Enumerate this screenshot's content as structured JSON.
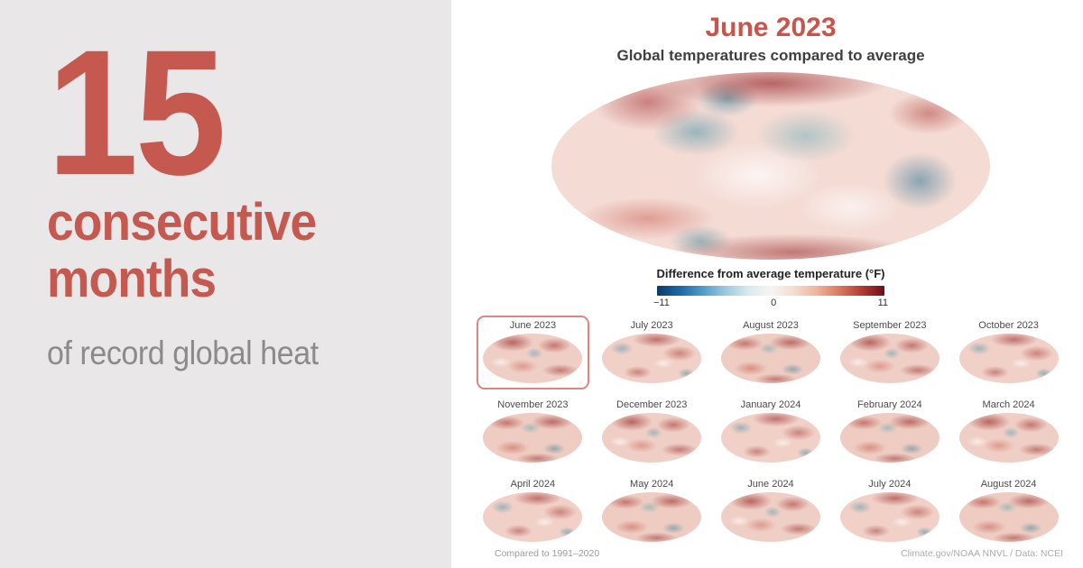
{
  "headline": {
    "number": "15",
    "word1": "consecutive",
    "word2": "months",
    "subtitle": "of record global heat"
  },
  "main": {
    "title": "June 2023",
    "subtitle": "Global temperatures compared to average",
    "colorbar": {
      "label": "Difference from average temperature (°F)",
      "min": "−11",
      "mid": "0",
      "max": "11"
    },
    "months": [
      {
        "label": "June 2023"
      },
      {
        "label": "July 2023"
      },
      {
        "label": "August 2023"
      },
      {
        "label": "September 2023"
      },
      {
        "label": "October 2023"
      },
      {
        "label": "November 2023"
      },
      {
        "label": "December 2023"
      },
      {
        "label": "January 2024"
      },
      {
        "label": "February 2024"
      },
      {
        "label": "March 2024"
      },
      {
        "label": "April 2024"
      },
      {
        "label": "May 2024"
      },
      {
        "label": "June 2024"
      },
      {
        "label": "July 2024"
      },
      {
        "label": "August 2024"
      }
    ],
    "footer_left": "Compared to 1991–2020",
    "footer_right": "Climate.gov/NOAA NNVL / Data: NCEI"
  },
  "colors": {
    "accent_red": "#c5584f",
    "panel_gray": "#e9e7e8",
    "subtitle_gray": "#8b8b8b"
  },
  "chart_data": {
    "type": "heatmap",
    "title": "June 2023",
    "subtitle": "Global temperatures compared to average",
    "projection": "global elliptical (Mollweide-style) temperature anomaly maps",
    "colorbar": {
      "label": "Difference from average temperature (°F)",
      "min": -11,
      "mid": 0,
      "max": 11,
      "palette": "blue-white-red diverging"
    },
    "categories": [
      "June 2023",
      "July 2023",
      "August 2023",
      "September 2023",
      "October 2023",
      "November 2023",
      "December 2023",
      "January 2024",
      "February 2024",
      "March 2024",
      "April 2024",
      "May 2024",
      "June 2024",
      "July 2024",
      "August 2024"
    ],
    "highlighted_month": "June 2023",
    "record_streak_months": 15,
    "baseline_period": "1991–2020",
    "source": "Climate.gov/NOAA NNVL / Data: NCEI",
    "legend_position": "below main map"
  }
}
